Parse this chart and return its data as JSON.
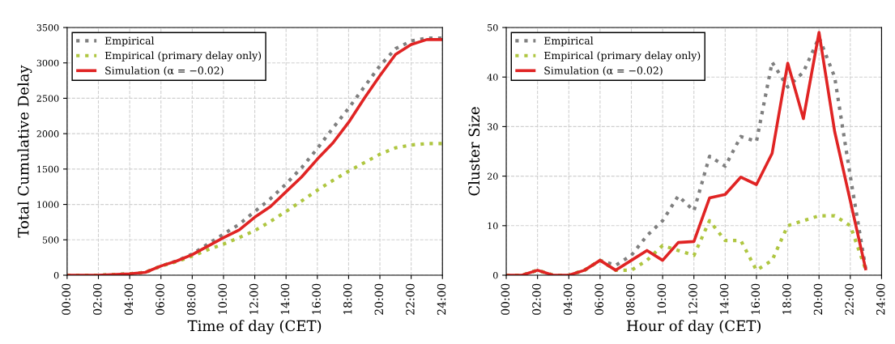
{
  "chart_data": [
    {
      "type": "line",
      "xlabel": "Time of day (CET)",
      "ylabel": "Total Cumulative Delay",
      "x": [
        0,
        2,
        4,
        5,
        6,
        7,
        8,
        9,
        10,
        11,
        12,
        13,
        14,
        15,
        16,
        17,
        18,
        19,
        20,
        21,
        22,
        23,
        24
      ],
      "series": [
        {
          "name": "Empirical",
          "color": "#7f7f7f",
          "line_style": "dotted",
          "values": [
            0,
            0,
            20,
            40,
            130,
            200,
            300,
            440,
            580,
            720,
            900,
            1080,
            1290,
            1520,
            1790,
            2080,
            2360,
            2660,
            2960,
            3200,
            3310,
            3350,
            3350
          ]
        },
        {
          "name": "Empirical (primary delay only)",
          "color": "#afc641",
          "line_style": "dotted",
          "values": [
            0,
            0,
            20,
            40,
            130,
            190,
            270,
            360,
            440,
            530,
            630,
            760,
            900,
            1050,
            1200,
            1340,
            1470,
            1590,
            1710,
            1800,
            1840,
            1860,
            1860
          ]
        },
        {
          "name": "Simulation (α = −0.02)",
          "color": "#e02424",
          "line_style": "solid",
          "values": [
            0,
            0,
            20,
            40,
            130,
            200,
            290,
            410,
            530,
            640,
            820,
            970,
            1180,
            1390,
            1640,
            1870,
            2160,
            2500,
            2820,
            3120,
            3260,
            3330,
            3330
          ]
        }
      ],
      "xlim": [
        0,
        24
      ],
      "xticks": [
        {
          "value": 0,
          "label": "00:00"
        },
        {
          "value": 2,
          "label": "02:00"
        },
        {
          "value": 4,
          "label": "04:00"
        },
        {
          "value": 6,
          "label": "06:00"
        },
        {
          "value": 8,
          "label": "08:00"
        },
        {
          "value": 10,
          "label": "10:00"
        },
        {
          "value": 12,
          "label": "12:00"
        },
        {
          "value": 14,
          "label": "14:00"
        },
        {
          "value": 16,
          "label": "16:00"
        },
        {
          "value": 18,
          "label": "18:00"
        },
        {
          "value": 20,
          "label": "20:00"
        },
        {
          "value": 22,
          "label": "22:00"
        },
        {
          "value": 24,
          "label": "24:00"
        }
      ],
      "ylim": [
        0,
        3500
      ],
      "yticks": [
        0,
        500,
        1000,
        1500,
        2000,
        2500,
        3000,
        3500
      ],
      "grid": true,
      "legend": "top left"
    },
    {
      "type": "line",
      "xlabel": "Hour of day (CET)",
      "ylabel": "Cluster Size",
      "x": [
        0,
        1,
        2,
        3,
        4,
        5,
        6,
        7,
        8,
        9,
        10,
        11,
        12,
        13,
        14,
        15,
        16,
        17,
        18,
        19,
        20,
        21,
        22,
        23
      ],
      "series": [
        {
          "name": "Empirical",
          "color": "#7f7f7f",
          "line_style": "dotted",
          "values": [
            0,
            0,
            1,
            0,
            0,
            1,
            3,
            2,
            4,
            8,
            11,
            16,
            13,
            24,
            22,
            28,
            27,
            43,
            38,
            41,
            48,
            40,
            20,
            1
          ]
        },
        {
          "name": "Empirical (primary delay only)",
          "color": "#afc641",
          "line_style": "dotted",
          "values": [
            0,
            0,
            1,
            0,
            0,
            1,
            3,
            1,
            1,
            3,
            6,
            5,
            4,
            11,
            7,
            7,
            1,
            3,
            10,
            11,
            12,
            12,
            10,
            1
          ]
        },
        {
          "name": "Simulation (α = −0.02)",
          "color": "#e02424",
          "line_style": "solid",
          "values": [
            0,
            0,
            1,
            0,
            0,
            1,
            3,
            1,
            3,
            5,
            3,
            6.6,
            6.8,
            15.6,
            16.3,
            19.8,
            18.3,
            24.6,
            42.8,
            31.6,
            49,
            29,
            15,
            1
          ]
        }
      ],
      "xlim": [
        0,
        24
      ],
      "xticks": [
        {
          "value": 0,
          "label": "00:00"
        },
        {
          "value": 2,
          "label": "02:00"
        },
        {
          "value": 4,
          "label": "04:00"
        },
        {
          "value": 6,
          "label": "06:00"
        },
        {
          "value": 8,
          "label": "08:00"
        },
        {
          "value": 10,
          "label": "10:00"
        },
        {
          "value": 12,
          "label": "12:00"
        },
        {
          "value": 14,
          "label": "14:00"
        },
        {
          "value": 16,
          "label": "16:00"
        },
        {
          "value": 18,
          "label": "18:00"
        },
        {
          "value": 20,
          "label": "20:00"
        },
        {
          "value": 22,
          "label": "22:00"
        },
        {
          "value": 24,
          "label": "24:00"
        }
      ],
      "ylim": [
        0,
        50
      ],
      "yticks": [
        0,
        10,
        20,
        30,
        40,
        50
      ],
      "grid": true,
      "legend": "top left"
    }
  ]
}
